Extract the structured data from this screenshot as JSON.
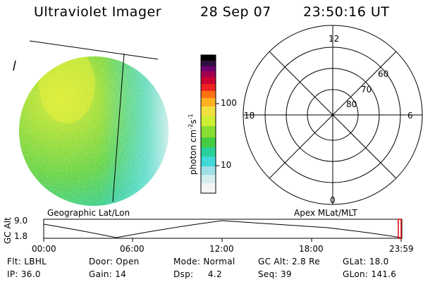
{
  "header": {
    "instrument": "Ultraviolet Imager",
    "date": "28 Sep 07",
    "time": "23:50:16 UT"
  },
  "colorbar": {
    "unit": "photon cm",
    "unit_exp1": "-2",
    "unit_s": "s",
    "unit_exp2": "-1",
    "tick_100": "100",
    "tick_10": "10",
    "colors": [
      "#ffffff",
      "#e0e0e0",
      "#9fdfe6",
      "#40d8d8",
      "#2ad09a",
      "#44cc44",
      "#88dd33",
      "#ccee33",
      "#f0e040",
      "#ffb020",
      "#ff7010",
      "#ee2222",
      "#cc0033",
      "#a00050",
      "#700070",
      "#301040",
      "#000000"
    ]
  },
  "image_panel": {
    "label": "Geographic Lat/Lon"
  },
  "polar_plot": {
    "label": "Apex MLat/MLT",
    "mlt_top": "12",
    "mlt_left": "18",
    "mlt_right": "6",
    "mlt_bottom": "0",
    "lat_60": "60",
    "lat_70": "70",
    "lat_80": "80"
  },
  "orbit_plot": {
    "ylabel": "GC Alt",
    "ymax": "9.0",
    "ymin": "1.8",
    "xticks": [
      "00:00",
      "06:00",
      "12:00",
      "18:00",
      "23:59"
    ]
  },
  "info": {
    "filter": "Flt: LBHL",
    "door": "Door: Open",
    "mode": "Mode: Normal",
    "gc_alt": "GC Alt: 2.8 Re",
    "glat": "GLat:  18.0",
    "ip": "IP: 36.0",
    "gain": "Gain: 14",
    "dsp": "Dsp:     4.2",
    "seq": "Seq: 39",
    "glon": "GLon: 141.6"
  }
}
